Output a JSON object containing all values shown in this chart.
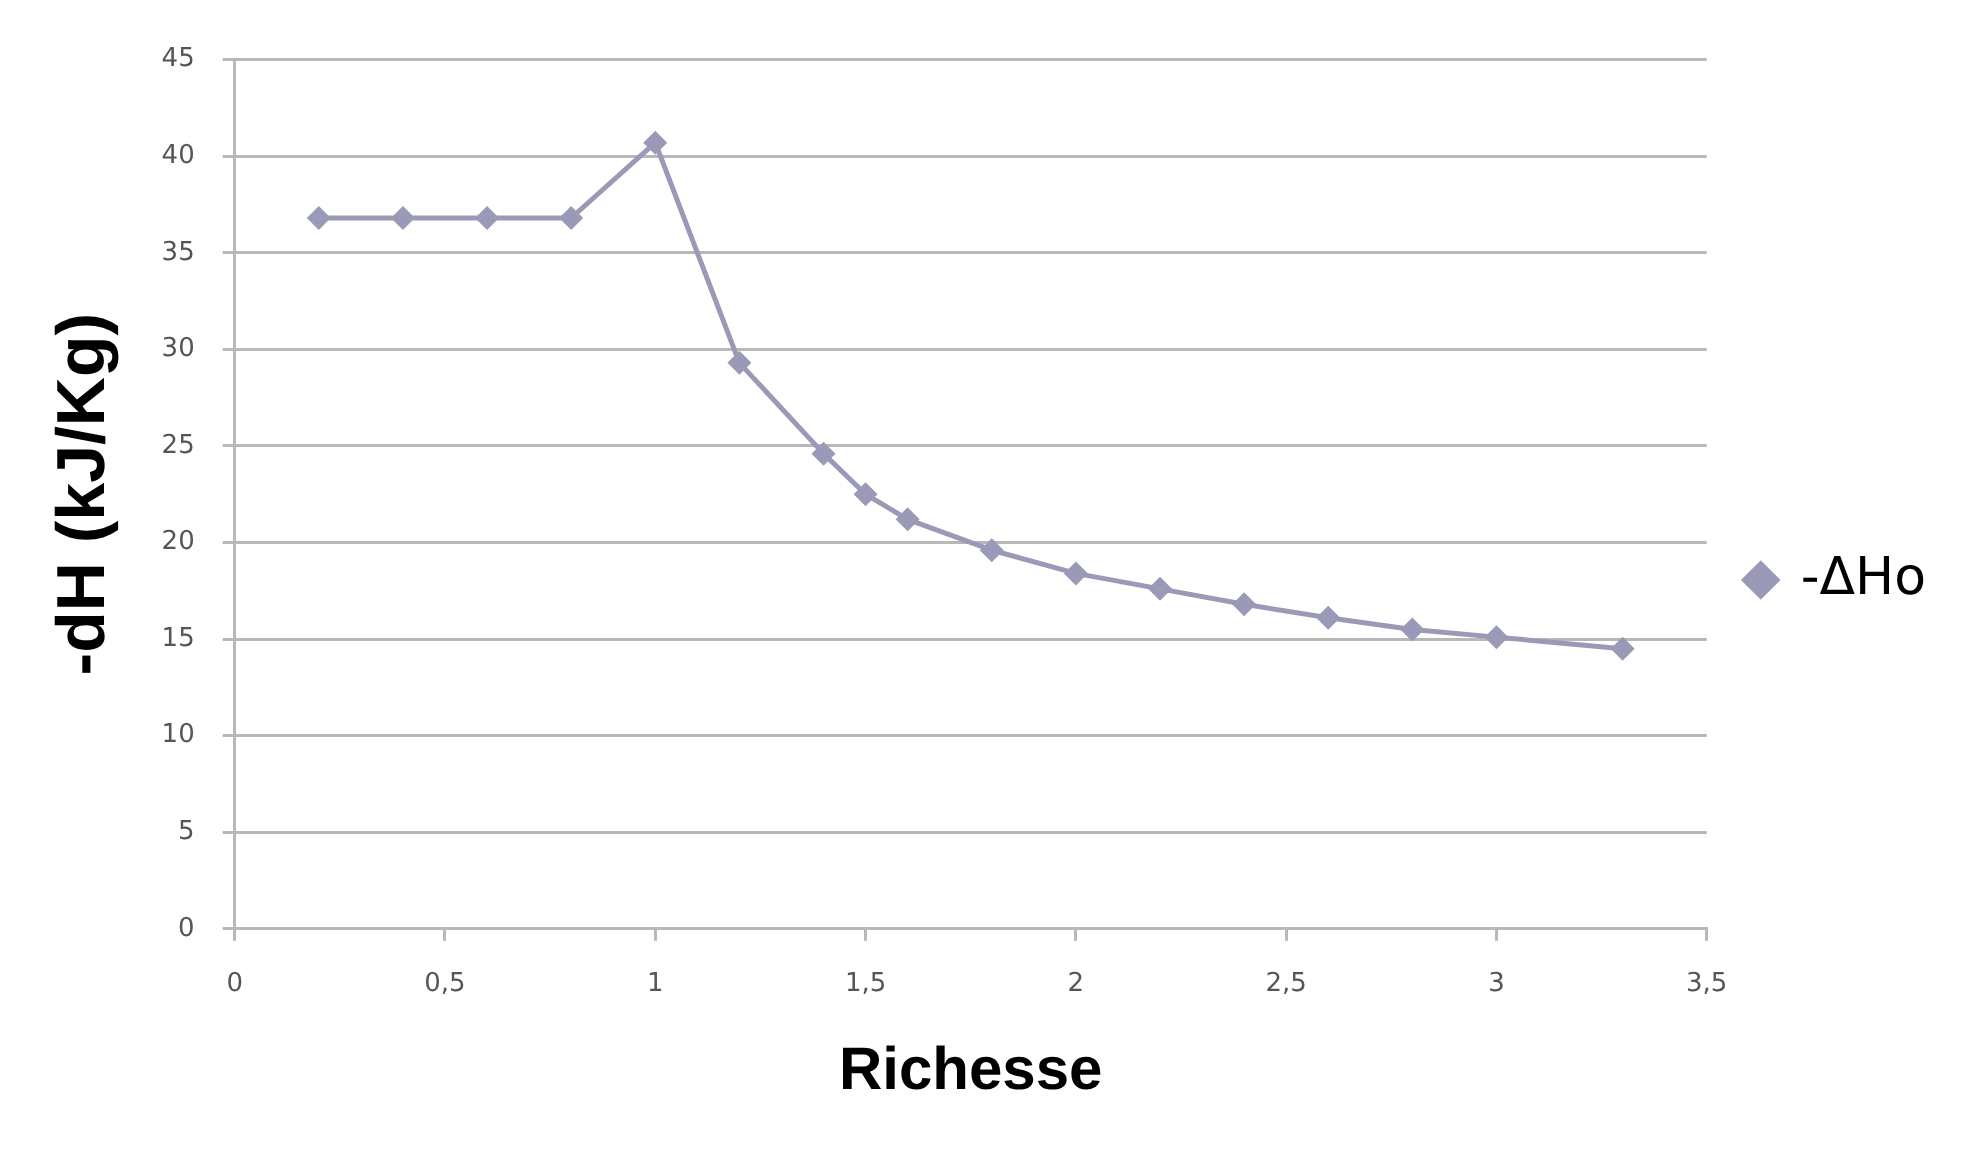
{
  "chart_data": {
    "type": "line",
    "xlabel": "Richesse",
    "ylabel": "-dH (kJ/Kg)",
    "series": [
      {
        "name": "-ΔHo",
        "color": "#9a9ab8",
        "x": [
          0.2,
          0.4,
          0.6,
          0.8,
          1.0,
          1.2,
          1.4,
          1.5,
          1.6,
          1.8,
          2.0,
          2.2,
          2.4,
          2.6,
          2.8,
          3.0,
          3.3
        ],
        "values": [
          36.8,
          36.8,
          36.8,
          36.8,
          40.7,
          29.3,
          24.6,
          22.5,
          21.2,
          19.6,
          18.4,
          17.6,
          16.8,
          16.1,
          15.5,
          15.1,
          14.5
        ]
      }
    ],
    "xlim": [
      0,
      3.5
    ],
    "xticks": [
      0,
      {
        "value": 0.5,
        "label": "0,5"
      },
      1,
      {
        "value": 1.5,
        "label": "1,5"
      },
      2,
      {
        "value": 2.5,
        "label": "2,5"
      },
      3,
      {
        "value": 3.5,
        "label": "3,5"
      }
    ],
    "ylim": [
      0,
      45
    ],
    "yticks": [
      0,
      5,
      10,
      15,
      20,
      25,
      30,
      35,
      40,
      45
    ],
    "grid": "y",
    "legend": "right",
    "marker": "diamond",
    "line_style": "solid"
  }
}
